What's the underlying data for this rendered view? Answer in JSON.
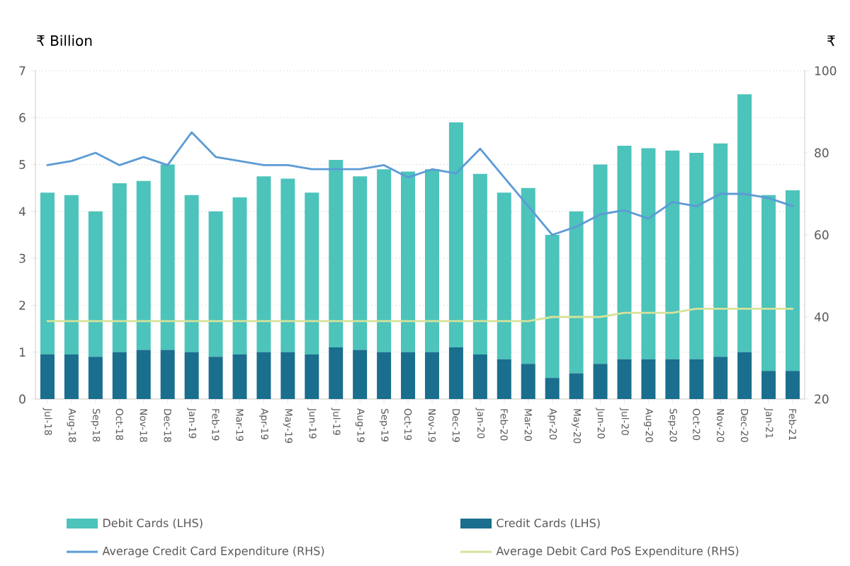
{
  "chart_data": {
    "type": "bar",
    "stacked": true,
    "ylabel": "₹ Billion",
    "y2label": "₹",
    "categories": [
      "Jul-18",
      "Aug-18",
      "Sep-18",
      "Oct-18",
      "Nov-18",
      "Dec-18",
      "Jan-19",
      "Feb-19",
      "Mar-19",
      "Apr-19",
      "May-19",
      "Jun-19",
      "Jul-19",
      "Aug-19",
      "Sep-19",
      "Oct-19",
      "Nov-19",
      "Dec-19",
      "Jan-20",
      "Feb-20",
      "Mar-20",
      "Apr-20",
      "May-20",
      "Jun-20",
      "Jul-20",
      "Aug-20",
      "Sep-20",
      "Oct-20",
      "Nov-20",
      "Dec-20",
      "Jan-21",
      "Feb-21"
    ],
    "series": [
      {
        "name": "Credit Cards (LHS)",
        "color": "#1a6e8e",
        "values": [
          0.95,
          0.95,
          0.9,
          1.0,
          1.05,
          1.05,
          1.0,
          0.9,
          0.95,
          1.0,
          1.0,
          0.95,
          1.1,
          1.05,
          1.0,
          1.0,
          1.0,
          1.1,
          0.95,
          0.85,
          0.75,
          0.45,
          0.55,
          0.75,
          0.85,
          0.85,
          0.85,
          0.85,
          0.9,
          1.0,
          0.6,
          0.6
        ]
      },
      {
        "name": "Debit Cards (LHS)",
        "color": "#4cc3bb",
        "values": [
          3.45,
          3.4,
          3.1,
          3.6,
          3.6,
          3.95,
          3.35,
          3.1,
          3.35,
          3.75,
          3.7,
          3.45,
          4.0,
          3.7,
          3.9,
          3.85,
          3.9,
          4.8,
          3.85,
          3.55,
          3.75,
          3.05,
          3.45,
          4.25,
          4.55,
          4.5,
          4.45,
          4.4,
          4.55,
          5.5,
          3.75,
          3.85
        ]
      },
      {
        "name": "Average Credit Card Expenditure (RHS)",
        "type": "line",
        "axis": "y2",
        "color": "#5b9bd5",
        "values": [
          77,
          78,
          80,
          77,
          79,
          77,
          85,
          79,
          78,
          77,
          77,
          76,
          76,
          76,
          77,
          74,
          76,
          75,
          81,
          74,
          67,
          60,
          62,
          65,
          66,
          64,
          68,
          67,
          70,
          70,
          69,
          67
        ]
      },
      {
        "name": "Average Debit Card PoS Expenditure (RHS)",
        "type": "line",
        "axis": "y2",
        "color": "#d6e29a",
        "values": [
          39,
          39,
          39,
          39,
          39,
          39,
          39,
          39,
          39,
          39,
          39,
          39,
          39,
          39,
          39,
          39,
          39,
          39,
          39,
          39,
          39,
          40,
          40,
          40,
          41,
          41,
          41,
          42,
          42,
          42,
          42,
          42
        ]
      }
    ],
    "ylim": [
      0,
      7
    ],
    "yticks": [
      0,
      1,
      2,
      3,
      4,
      5,
      6,
      7
    ],
    "y2lim": [
      20,
      100
    ],
    "y2ticks": [
      20,
      40,
      60,
      80,
      100
    ],
    "grid": "y",
    "legend": "bottom"
  }
}
